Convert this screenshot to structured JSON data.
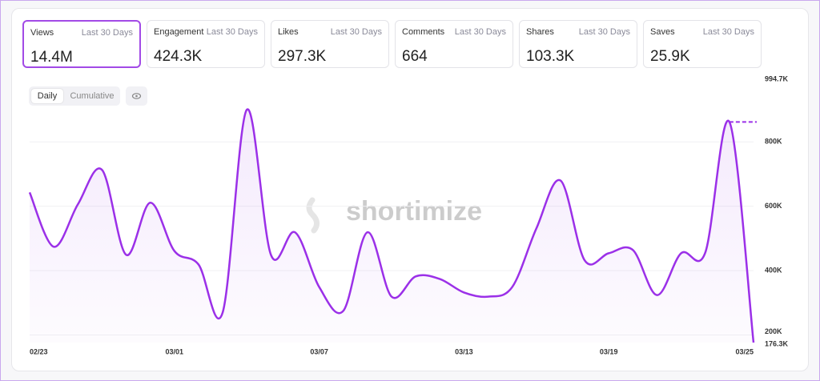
{
  "cards": [
    {
      "label": "Views",
      "period": "Last 30 Days",
      "value": "14.4M"
    },
    {
      "label": "Engagement",
      "period": "Last 30 Days",
      "value": "424.3K"
    },
    {
      "label": "Likes",
      "period": "Last 30 Days",
      "value": "297.3K"
    },
    {
      "label": "Comments",
      "period": "Last 30 Days",
      "value": "664"
    },
    {
      "label": "Shares",
      "period": "Last 30 Days",
      "value": "103.3K"
    },
    {
      "label": "Saves",
      "period": "Last 30 Days",
      "value": "25.9K"
    }
  ],
  "toggle": [
    "Daily",
    "Cumulative"
  ],
  "watermark": "shortimize",
  "chart_data": {
    "type": "line",
    "categories": [
      "02/23",
      null,
      null,
      null,
      null,
      null,
      "03/01",
      null,
      null,
      null,
      null,
      null,
      "03/07",
      null,
      null,
      null,
      null,
      null,
      "03/13",
      null,
      null,
      null,
      null,
      null,
      "03/19",
      null,
      null,
      null,
      null,
      null,
      "03/25"
    ],
    "series": [
      {
        "name": "Views",
        "color": "#9b30e8",
        "values": [
          643000,
          474000,
          606000,
          713000,
          449000,
          611000,
          461000,
          419000,
          270000,
          900000,
          449000,
          519000,
          349000,
          275000,
          519000,
          319000,
          382000,
          374000,
          332000,
          319000,
          349000,
          531000,
          680000,
          432000,
          454000,
          464000,
          324000,
          454000,
          456000,
          862000,
          176300
        ]
      }
    ],
    "ylim": [
      176300,
      994700
    ],
    "yticks": [
      {
        "value": 176300,
        "label": "176.3K"
      },
      {
        "value": 200000,
        "label": "200K"
      },
      {
        "value": 400000,
        "label": "400K"
      },
      {
        "value": 600000,
        "label": "600K"
      },
      {
        "value": 800000,
        "label": "800K"
      },
      {
        "value": 994700,
        "label": "994.7K"
      }
    ],
    "grid": true
  }
}
